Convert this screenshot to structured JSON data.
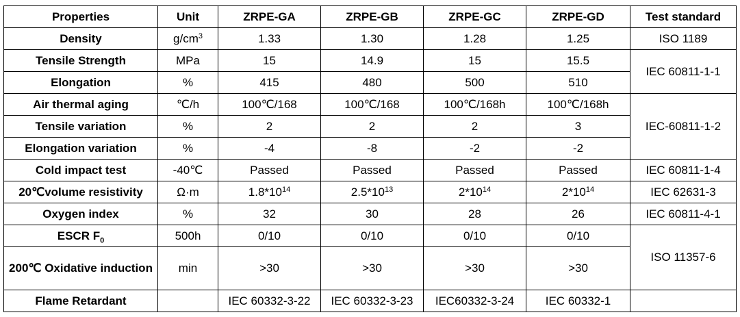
{
  "table": {
    "header": [
      "Properties",
      "Unit",
      "ZRPE-GA",
      "ZRPE-GB",
      "ZRPE-GC",
      "ZRPE-GD",
      "Test standard"
    ],
    "rows": [
      {
        "property": "Density",
        "unit": [
          "g/cm",
          "3"
        ],
        "values": [
          "1.33",
          "1.30",
          "1.28",
          "1.25"
        ],
        "standard": "ISO 1189"
      },
      {
        "property": "Tensile Strength",
        "unit": "MPa",
        "values": [
          "15",
          "14.9",
          "15",
          "15.5"
        ],
        "standard": "IEC 60811-1-1"
      },
      {
        "property": "Elongation",
        "unit": "%",
        "values": [
          "415",
          "480",
          "500",
          "510"
        ]
      },
      {
        "property": "Air thermal aging",
        "unit": "℃/h",
        "values": [
          "100℃/168",
          "100℃/168",
          "100℃/168h",
          "100℃/168h"
        ],
        "standard": "IEC-60811-1-2"
      },
      {
        "property": "Tensile variation",
        "unit": "%",
        "values": [
          "2",
          "2",
          "2",
          "3"
        ]
      },
      {
        "property": "Elongation variation",
        "unit": "%",
        "values": [
          "-4",
          "-8",
          "-2",
          "-2"
        ]
      },
      {
        "property": "Cold impact test",
        "unit": "-40℃",
        "values": [
          "Passed",
          "Passed",
          "Passed",
          "Passed"
        ],
        "standard": "IEC 60811-1-4"
      },
      {
        "property": "20℃volume resistivity",
        "unit": "Ω·m",
        "values": [
          [
            "1.8*10",
            "14"
          ],
          [
            "2.5*10",
            "13"
          ],
          [
            "2*10",
            "14"
          ],
          [
            "2*10",
            "14"
          ]
        ],
        "standard": "IEC 62631-3"
      },
      {
        "property": "Oxygen index",
        "unit": "%",
        "values": [
          "32",
          "30",
          "28",
          "26"
        ],
        "standard": "IEC 60811-4-1"
      },
      {
        "property": [
          "ESCR F",
          "0"
        ],
        "unit": "500h",
        "values": [
          "0/10",
          "0/10",
          "0/10",
          "0/10"
        ],
        "standard": "ISO 11357-6"
      },
      {
        "property": "200℃  Oxidative induction",
        "unit": "min",
        "values": [
          ">30",
          ">30",
          ">30",
          ">30"
        ]
      },
      {
        "property": "Flame Retardant",
        "values": [
          "IEC 60332-3-22",
          "IEC 60332-3-23",
          "IEC60332-3-24",
          "IEC 60332-1"
        ]
      }
    ]
  }
}
